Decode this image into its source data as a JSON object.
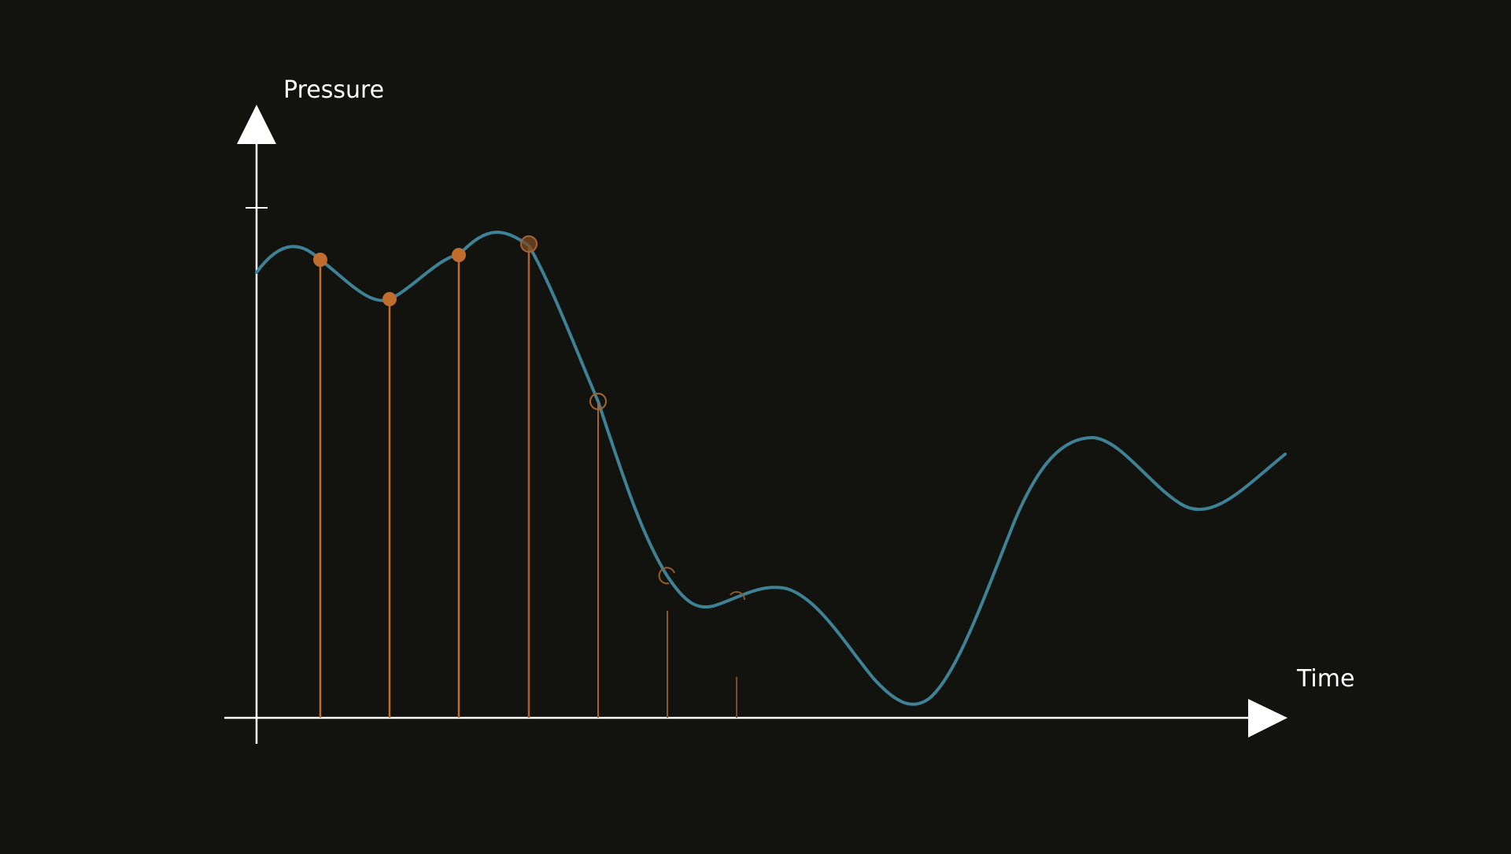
{
  "diagram": {
    "y_axis_label": "Pressure",
    "x_axis_label": "Time",
    "colors": {
      "background": "#12130f",
      "axis": "#ffffff",
      "wave": "#3f8296",
      "sample": "#c06d2e"
    }
  }
}
